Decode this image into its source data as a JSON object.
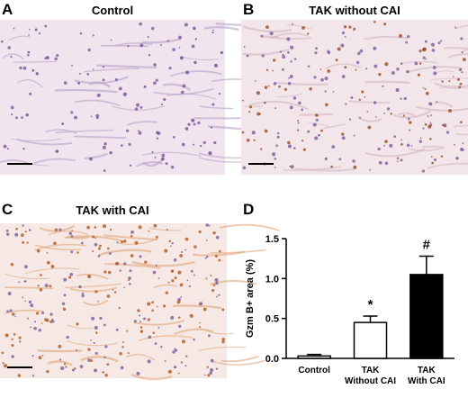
{
  "panels": [
    {
      "letter": "A",
      "title": "Control"
    },
    {
      "letter": "B",
      "title": "TAK without CAI"
    },
    {
      "letter": "C",
      "title": "TAK with CAI"
    }
  ],
  "chart_data": {
    "type": "bar",
    "letter": "D",
    "ylabel": "Gzm B+ area (%)",
    "categories": [
      "Control",
      "TAK\nWithout CAI",
      "TAK\nWith CAI"
    ],
    "values": [
      0.03,
      0.45,
      1.05
    ],
    "errors": [
      0.02,
      0.08,
      0.23
    ],
    "colors": [
      "#ffffff",
      "#ffffff",
      "#000000"
    ],
    "bar_labels": [
      null,
      "*",
      "#"
    ],
    "ylim": [
      0,
      1.5
    ],
    "yticks": [
      {
        "value": 0,
        "label": "0.0"
      },
      {
        "value": 0.5,
        "label": "0.5"
      },
      {
        "value": 1,
        "label": "1.0"
      },
      {
        "value": 1.5,
        "label": "1.5"
      }
    ]
  }
}
